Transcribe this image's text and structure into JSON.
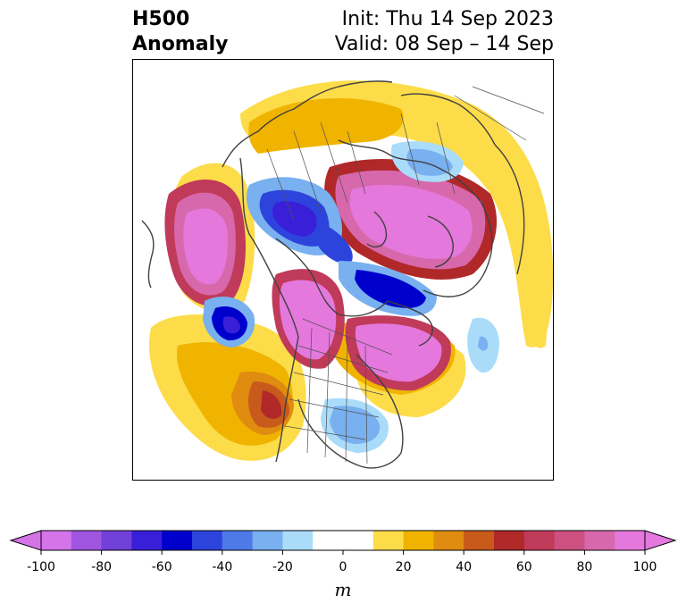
{
  "title": {
    "left_line1": "H500",
    "left_line2": "Anomaly",
    "right_line1": "Init: Thu 14 Sep 2023",
    "right_line2": "Valid: 08 Sep – 14 Sep"
  },
  "colorbar": {
    "unit": "m",
    "range": [
      -100,
      100
    ],
    "step": 10,
    "extend": "both",
    "tick_labels": [
      "-100",
      "-80",
      "-60",
      "-40",
      "-20",
      "0",
      "20",
      "40",
      "60",
      "80",
      "100"
    ],
    "colors": [
      "#d474e8",
      "#a055e0",
      "#7040d8",
      "#3a1fd8",
      "#0000cd",
      "#2c44dc",
      "#4e7ae8",
      "#78b0f0",
      "#aadcfa",
      "#ffffff",
      "#ffffff",
      "#fddc4a",
      "#f0b400",
      "#e08c10",
      "#c85a1c",
      "#b02828",
      "#c03a5a",
      "#cc5080",
      "#d868ac",
      "#e478dc"
    ]
  },
  "map": {
    "projection": "polar stereographic, North America / Arctic",
    "features": [
      "coastlines",
      "country borders",
      "US state borders",
      "Canadian province borders"
    ]
  }
}
